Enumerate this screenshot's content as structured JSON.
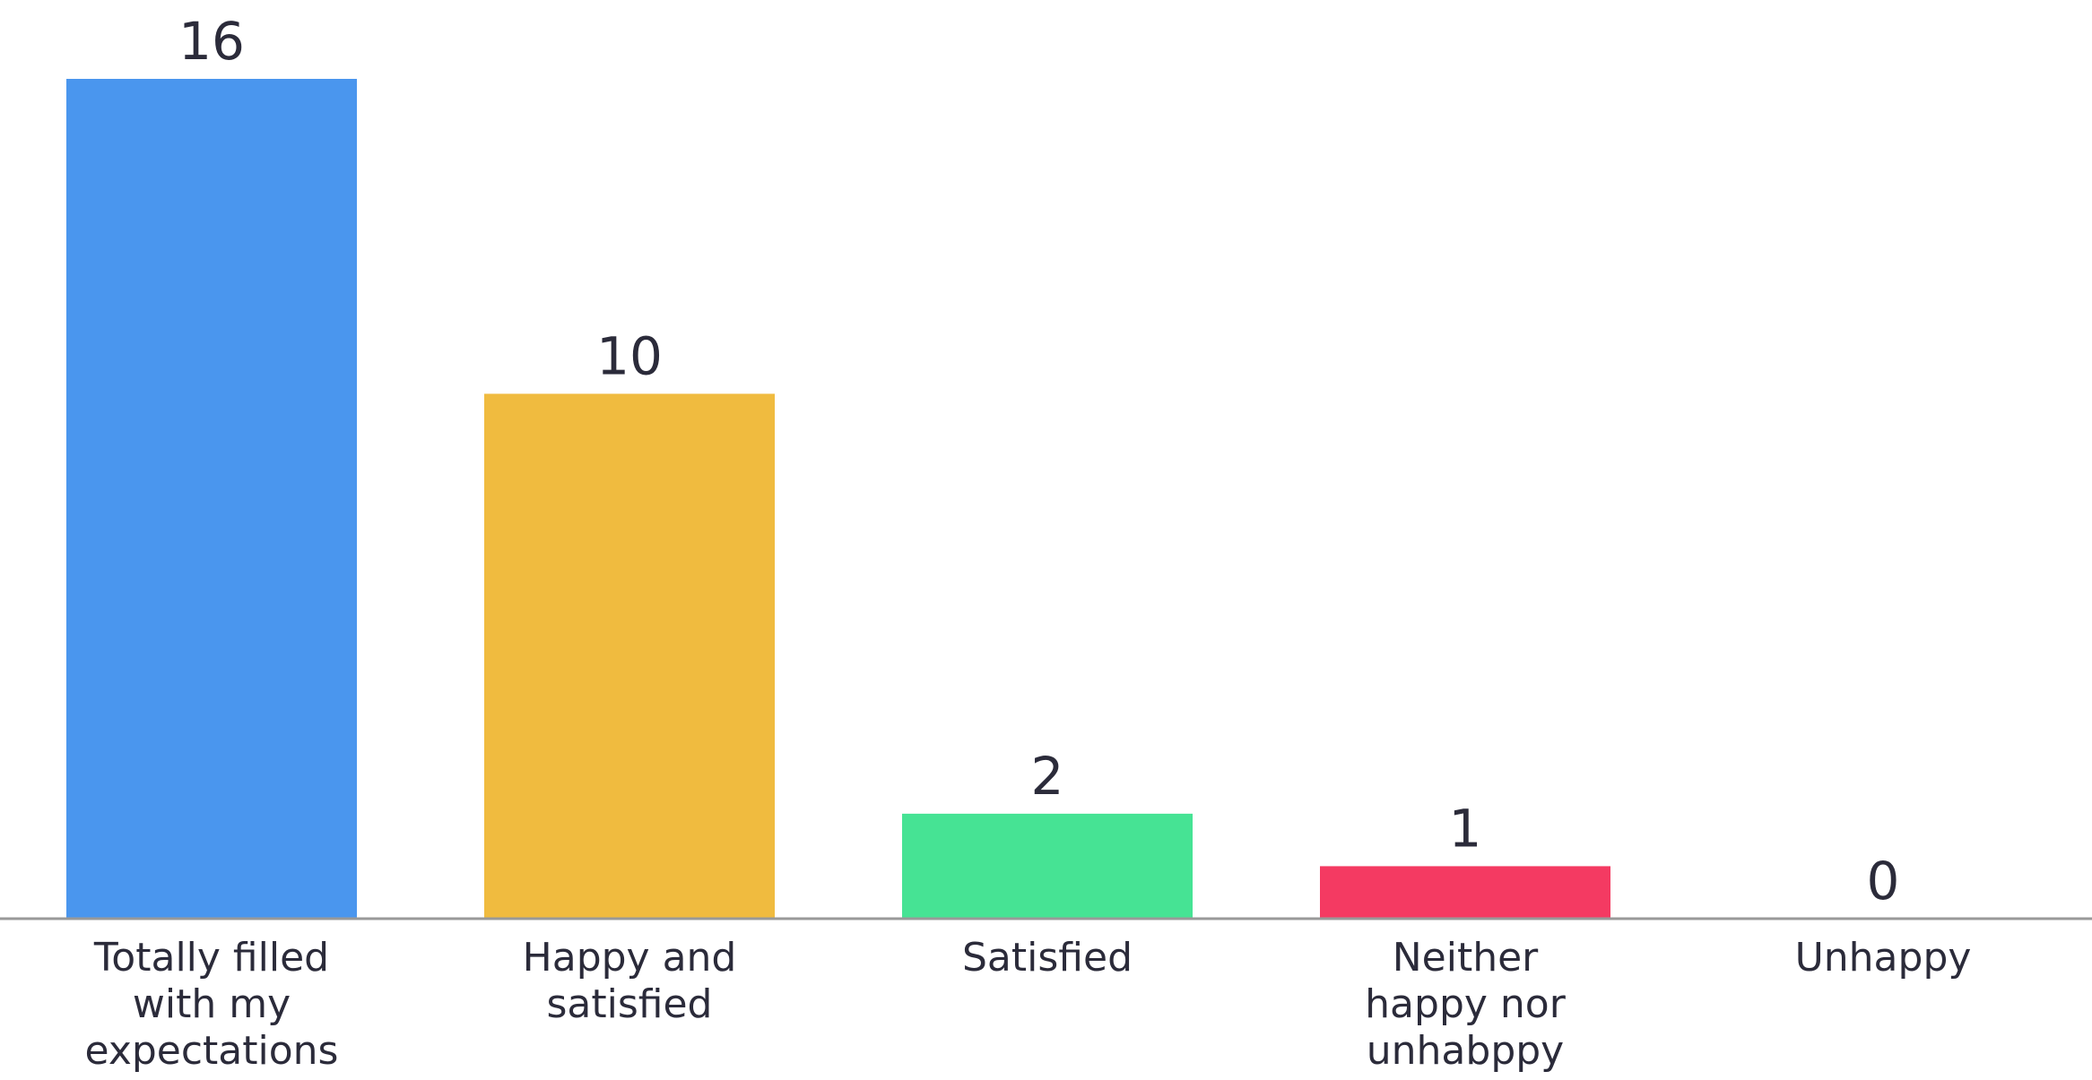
{
  "chart_data": {
    "type": "bar",
    "categories": [
      [
        "Totally filled",
        "with my",
        "expectations"
      ],
      [
        "Happy and",
        "satisfied"
      ],
      [
        "Satisfied"
      ],
      [
        "Neither",
        "happy nor",
        "unhabppy"
      ],
      [
        "Unhappy"
      ]
    ],
    "values": [
      16,
      10,
      2,
      1,
      0
    ],
    "value_labels": [
      "16",
      "10",
      "2",
      "1",
      "0"
    ],
    "colors": [
      "#4a96ee",
      "#f0bb3f",
      "#46e394",
      "#f43a62",
      "#c8c8c8"
    ],
    "ylim": [
      0,
      16
    ],
    "grid": false,
    "legend": "none",
    "axis_color": "#999999"
  }
}
